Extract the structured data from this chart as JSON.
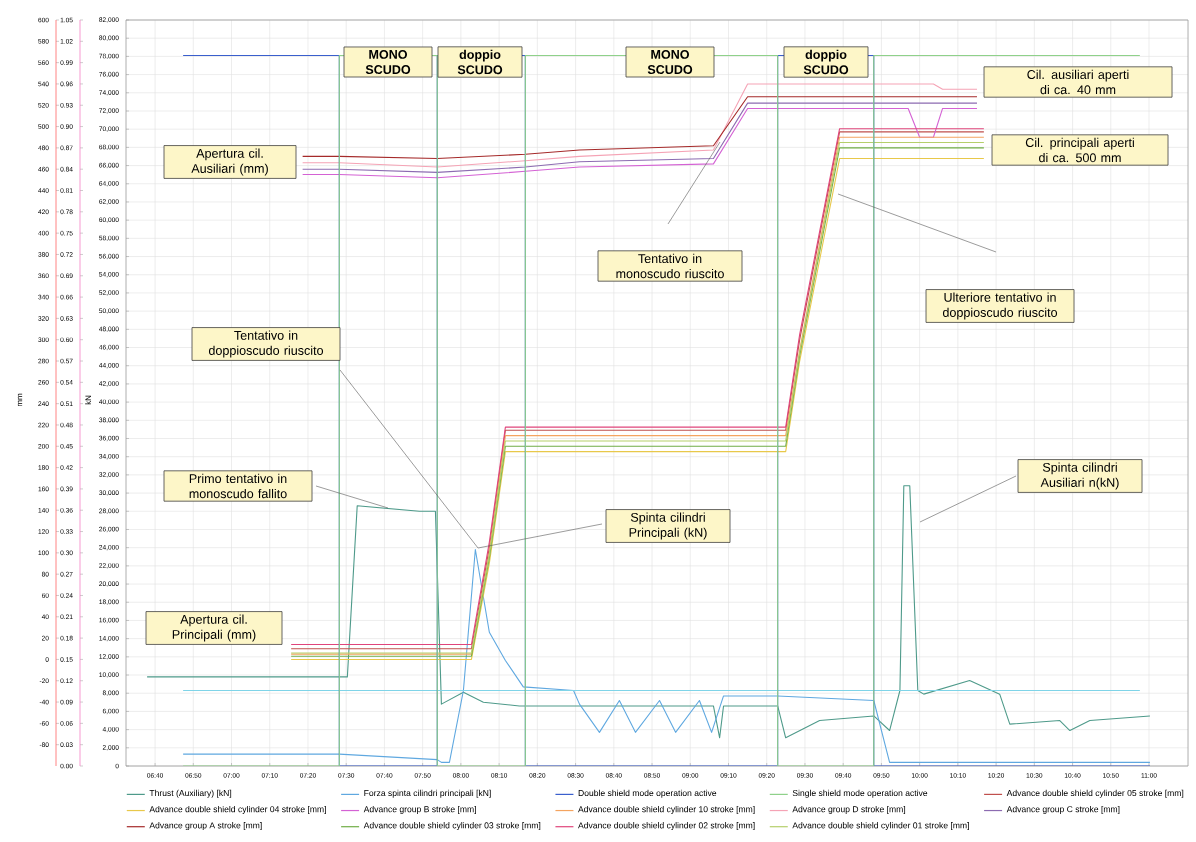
{
  "chart_data": {
    "type": "line",
    "ylabel": "mm",
    "y3label": "kN",
    "grid": true,
    "legend": "bottom",
    "xlim": [
      6.54,
      11.17
    ],
    "xticks": [
      {
        "value": 6.6667,
        "label": "06:40"
      },
      {
        "value": 6.8333,
        "label": "06:50"
      },
      {
        "value": 7,
        "label": "07:00"
      },
      {
        "value": 7.1667,
        "label": "07:10"
      },
      {
        "value": 7.3333,
        "label": "07:20"
      },
      {
        "value": 7.5,
        "label": "07:30"
      },
      {
        "value": 7.6667,
        "label": "07:40"
      },
      {
        "value": 7.8333,
        "label": "07:50"
      },
      {
        "value": 8,
        "label": "08:00"
      },
      {
        "value": 8.1667,
        "label": "08:10"
      },
      {
        "value": 8.3333,
        "label": "08:20"
      },
      {
        "value": 8.5,
        "label": "08:30"
      },
      {
        "value": 8.6667,
        "label": "08:40"
      },
      {
        "value": 8.8333,
        "label": "08:50"
      },
      {
        "value": 9,
        "label": "09:00"
      },
      {
        "value": 9.1667,
        "label": "09:10"
      },
      {
        "value": 9.3333,
        "label": "09:20"
      },
      {
        "value": 9.5,
        "label": "09:30"
      },
      {
        "value": 9.6667,
        "label": "09:40"
      },
      {
        "value": 9.8333,
        "label": "09:50"
      },
      {
        "value": 10,
        "label": "10:00"
      },
      {
        "value": 10.1667,
        "label": "10:10"
      },
      {
        "value": 10.3333,
        "label": "10:20"
      },
      {
        "value": 10.5,
        "label": "10:30"
      },
      {
        "value": 10.6667,
        "label": "10:40"
      },
      {
        "value": 10.8333,
        "label": "10:50"
      },
      {
        "value": 11,
        "label": "11:00"
      }
    ],
    "ylim": [
      -100,
      600
    ],
    "yticks": [
      -80,
      -60,
      -40,
      -20,
      0,
      20,
      40,
      60,
      80,
      100,
      120,
      140,
      160,
      180,
      200,
      220,
      240,
      260,
      280,
      300,
      320,
      340,
      360,
      380,
      400,
      420,
      440,
      460,
      480,
      500,
      520,
      540,
      560,
      580,
      600
    ],
    "y2lim": [
      0,
      1.05
    ],
    "y2ticks": [
      {
        "value": 0,
        "label": "0.00"
      },
      0.03,
      0.06,
      0.09,
      0.12,
      0.15,
      0.18,
      0.21,
      0.24,
      0.27,
      {
        "value": 0.3,
        "label": "0.30"
      },
      0.33,
      0.36,
      0.39,
      0.42,
      0.45,
      0.48,
      0.51,
      0.54,
      0.57,
      {
        "value": 0.6,
        "label": "0.60"
      },
      0.63,
      0.66,
      0.69,
      0.72,
      0.75,
      0.78,
      0.81,
      0.84,
      0.87,
      {
        "value": 0.9,
        "label": "0.90"
      },
      0.93,
      0.96,
      0.99,
      1.02,
      1.05
    ],
    "y3lim": [
      0,
      82000
    ],
    "y3ticks": [
      0,
      {
        "value": 2000,
        "label": "2,000"
      },
      {
        "value": 4000,
        "label": "4,000"
      },
      {
        "value": 6000,
        "label": "6,000"
      },
      {
        "value": 8000,
        "label": "8,000"
      },
      {
        "value": 10000,
        "label": "10,000"
      },
      {
        "value": 12000,
        "label": "12,000"
      },
      {
        "value": 14000,
        "label": "14,000"
      },
      {
        "value": 16000,
        "label": "16,000"
      },
      {
        "value": 18000,
        "label": "18,000"
      },
      {
        "value": 20000,
        "label": "20,000"
      },
      {
        "value": 22000,
        "label": "22,000"
      },
      {
        "value": 24000,
        "label": "24,000"
      },
      {
        "value": 26000,
        "label": "26,000"
      },
      {
        "value": 28000,
        "label": "28,000"
      },
      {
        "value": 30000,
        "label": "30,000"
      },
      {
        "value": 32000,
        "label": "32,000"
      },
      {
        "value": 34000,
        "label": "34,000"
      },
      {
        "value": 36000,
        "label": "36,000"
      },
      {
        "value": 38000,
        "label": "38,000"
      },
      {
        "value": 40000,
        "label": "40,000"
      },
      {
        "value": 42000,
        "label": "42,000"
      },
      {
        "value": 44000,
        "label": "44,000"
      },
      {
        "value": 46000,
        "label": "46,000"
      },
      {
        "value": 48000,
        "label": "48,000"
      },
      {
        "value": 50000,
        "label": "50,000"
      },
      {
        "value": 52000,
        "label": "52,000"
      },
      {
        "value": 54000,
        "label": "54,000"
      },
      {
        "value": 56000,
        "label": "56,000"
      },
      {
        "value": 58000,
        "label": "58,000"
      },
      {
        "value": 60000,
        "label": "60,000"
      },
      {
        "value": 62000,
        "label": "62,000"
      },
      {
        "value": 64000,
        "label": "64,000"
      },
      {
        "value": 66000,
        "label": "66,000"
      },
      {
        "value": 68000,
        "label": "68,000"
      },
      {
        "value": 70000,
        "label": "70,000"
      },
      {
        "value": 72000,
        "label": "72,000"
      },
      {
        "value": 74000,
        "label": "74,000"
      },
      {
        "value": 76000,
        "label": "76,000"
      },
      {
        "value": 78000,
        "label": "78,000"
      },
      {
        "value": 80000,
        "label": "80,000"
      },
      {
        "value": 82000,
        "label": "82,000"
      }
    ],
    "series": [
      {
        "name": "Thrust (Auxiliary) [kN]",
        "color": "#4e9a8a",
        "axis": "y3",
        "x": [
          6.632,
          7.505,
          7.548,
          7.819,
          7.889,
          7.915,
          8.011,
          8.098,
          8.255,
          9.101,
          9.128,
          9.145,
          9.381,
          9.416,
          9.564,
          9.8,
          9.869,
          9.914,
          9.931,
          9.957,
          9.992,
          10.018,
          10.218,
          10.349,
          10.393,
          10.611,
          10.655,
          10.742,
          11.004
        ],
        "values": [
          9800,
          9800,
          28600,
          28000,
          28000,
          6800,
          8100,
          7000,
          6600,
          6600,
          3100,
          6600,
          6600,
          3100,
          5000,
          5500,
          3900,
          8300,
          30800,
          30800,
          8300,
          7900,
          9400,
          7900,
          4600,
          5000,
          3900,
          5000,
          5500
        ]
      },
      {
        "name": "Forza spinta cilindri principali [kN]",
        "color": "#5fa8e0",
        "axis": "y3",
        "x": [
          6.789,
          7.47,
          7.897,
          7.915,
          7.95,
          8.011,
          8.063,
          8.124,
          8.194,
          8.272,
          8.491,
          8.517,
          8.604,
          8.691,
          8.761,
          8.866,
          8.936,
          9.04,
          9.093,
          9.145,
          9.381,
          9.8,
          9.869,
          11.004
        ],
        "values": [
          1300,
          1300,
          700,
          400,
          400,
          8300,
          23800,
          14700,
          11600,
          8700,
          8300,
          6800,
          3700,
          7200,
          3700,
          7200,
          3700,
          7200,
          3700,
          7700,
          7700,
          7200,
          400,
          400
        ]
      },
      {
        "name": "Double shield mode operation active",
        "color": "#3a5fcd",
        "axis": "y2",
        "x": [
          6.789,
          7.47,
          7.47,
          7.897,
          7.897,
          8.281,
          8.281,
          9.381,
          9.381,
          9.8,
          9.8,
          11.004
        ],
        "values": [
          1,
          1,
          0,
          0,
          1,
          1,
          0,
          0,
          1,
          1,
          0,
          0
        ]
      },
      {
        "name": "Single shield mode operation active",
        "color": "#8fd18a",
        "axis": "y2",
        "x": [
          6.789,
          7.47,
          7.47,
          7.897,
          7.897,
          8.281,
          8.281,
          9.381,
          9.381,
          9.8,
          9.8,
          10.96
        ],
        "values": [
          0,
          0,
          1,
          1,
          0,
          0,
          1,
          1,
          0,
          0,
          1,
          1
        ]
      },
      {
        "name": "Advance double shield cylinder 05 stroke [mm]",
        "color": "#c0504d",
        "x": [
          7.26,
          8.046,
          8.124,
          8.194,
          9.416,
          9.477,
          9.651,
          10.28
        ],
        "values": [
          10,
          10,
          105,
          215,
          215,
          300,
          495,
          495
        ]
      },
      {
        "name": "Advance double shield cylinder 04 stroke [mm]",
        "color": "#e8c84a",
        "x": [
          7.26,
          8.046,
          8.124,
          8.194,
          9.416,
          9.477,
          9.651,
          10.28
        ],
        "values": [
          0,
          0,
          90,
          195,
          195,
          280,
          470,
          470
        ]
      },
      {
        "name": "Advance group B stroke [mm]",
        "color": "#d462d4",
        "x": [
          7.31,
          7.47,
          7.897,
          8.281,
          8.517,
          9.101,
          9.25,
          9.95,
          10.0,
          10.06,
          10.1,
          10.25
        ],
        "values": [
          455,
          455,
          452,
          458,
          462,
          465,
          517,
          517,
          490,
          490,
          517,
          517
        ]
      },
      {
        "name": "Advance double shield cylinder 10 stroke [mm]",
        "color": "#f4a460",
        "x": [
          7.26,
          8.046,
          8.124,
          8.194,
          9.416,
          9.477,
          9.651,
          10.28
        ],
        "values": [
          5,
          5,
          100,
          210,
          210,
          290,
          490,
          490
        ]
      },
      {
        "name": "Advance group D stroke [mm]",
        "color": "#f5a3b5",
        "x": [
          7.31,
          7.47,
          7.897,
          8.281,
          8.517,
          9.101,
          9.25,
          9.95,
          10.0,
          10.06,
          10.1,
          10.25
        ],
        "values": [
          466,
          466,
          462,
          468,
          472,
          478,
          540,
          540,
          540,
          540,
          535,
          535
        ]
      },
      {
        "name": "Advance group C stroke [mm]",
        "color": "#8c6bb1",
        "x": [
          7.31,
          7.47,
          7.897,
          8.281,
          8.517,
          9.101,
          9.25,
          10.25
        ],
        "values": [
          460,
          460,
          457,
          462,
          467,
          470,
          522,
          522
        ]
      },
      {
        "name": "Advance group A stroke [mm]",
        "color": "#a52a2a",
        "x": [
          7.31,
          7.47,
          7.897,
          8.281,
          8.517,
          9.101,
          9.25,
          10.25
        ],
        "values": [
          472,
          472,
          470,
          474,
          478,
          482,
          528,
          528
        ]
      },
      {
        "name": "Advance double shield cylinder 03 stroke [mm]",
        "color": "#70ad47",
        "x": [
          7.26,
          8.046,
          8.124,
          8.194,
          9.416,
          9.477,
          9.651,
          10.28
        ],
        "values": [
          3,
          3,
          95,
          200,
          200,
          285,
          480,
          480
        ]
      },
      {
        "name": "Advance double shield cylinder 02 stroke [mm]",
        "color": "#e0457b",
        "x": [
          7.26,
          8.046,
          8.124,
          8.194,
          9.416,
          9.477,
          9.651,
          10.28
        ],
        "values": [
          14,
          14,
          110,
          218,
          218,
          305,
          498,
          498
        ]
      },
      {
        "name": "Advance double shield cylinder 01 stroke [mm]",
        "color": "#b5cf6b",
        "x": [
          7.26,
          8.046,
          8.124,
          8.194,
          9.416,
          9.477,
          9.651,
          10.28
        ],
        "values": [
          6,
          6,
          98,
          205,
          205,
          288,
          485,
          485
        ]
      },
      {
        "color": "#7fd4e8",
        "axis": "y3",
        "x": [
          6.789,
          10.96
        ],
        "values": [
          8300,
          8300
        ]
      }
    ],
    "annotations": [
      "MONO SCUDO",
      "doppio SCUDO",
      "MONO SCUDO",
      "doppio SCUDO",
      "Cil. ausiliari aperti di ca. 40 mm",
      "Cil. principali aperti di ca. 500 mm",
      "Apertura cil. Ausiliari (mm)",
      "Tentativo in monoscudo riuscito",
      "Ulteriore tentativo in doppioscudo riuscito",
      "Tentativo in doppioscudo riuscito",
      "Primo tentativo in monoscudo fallito",
      "Spinta cilindri Principali (kN)",
      "Spinta cilindri Ausiliari n(kN)",
      "Apertura cil. Principali (mm)"
    ]
  }
}
